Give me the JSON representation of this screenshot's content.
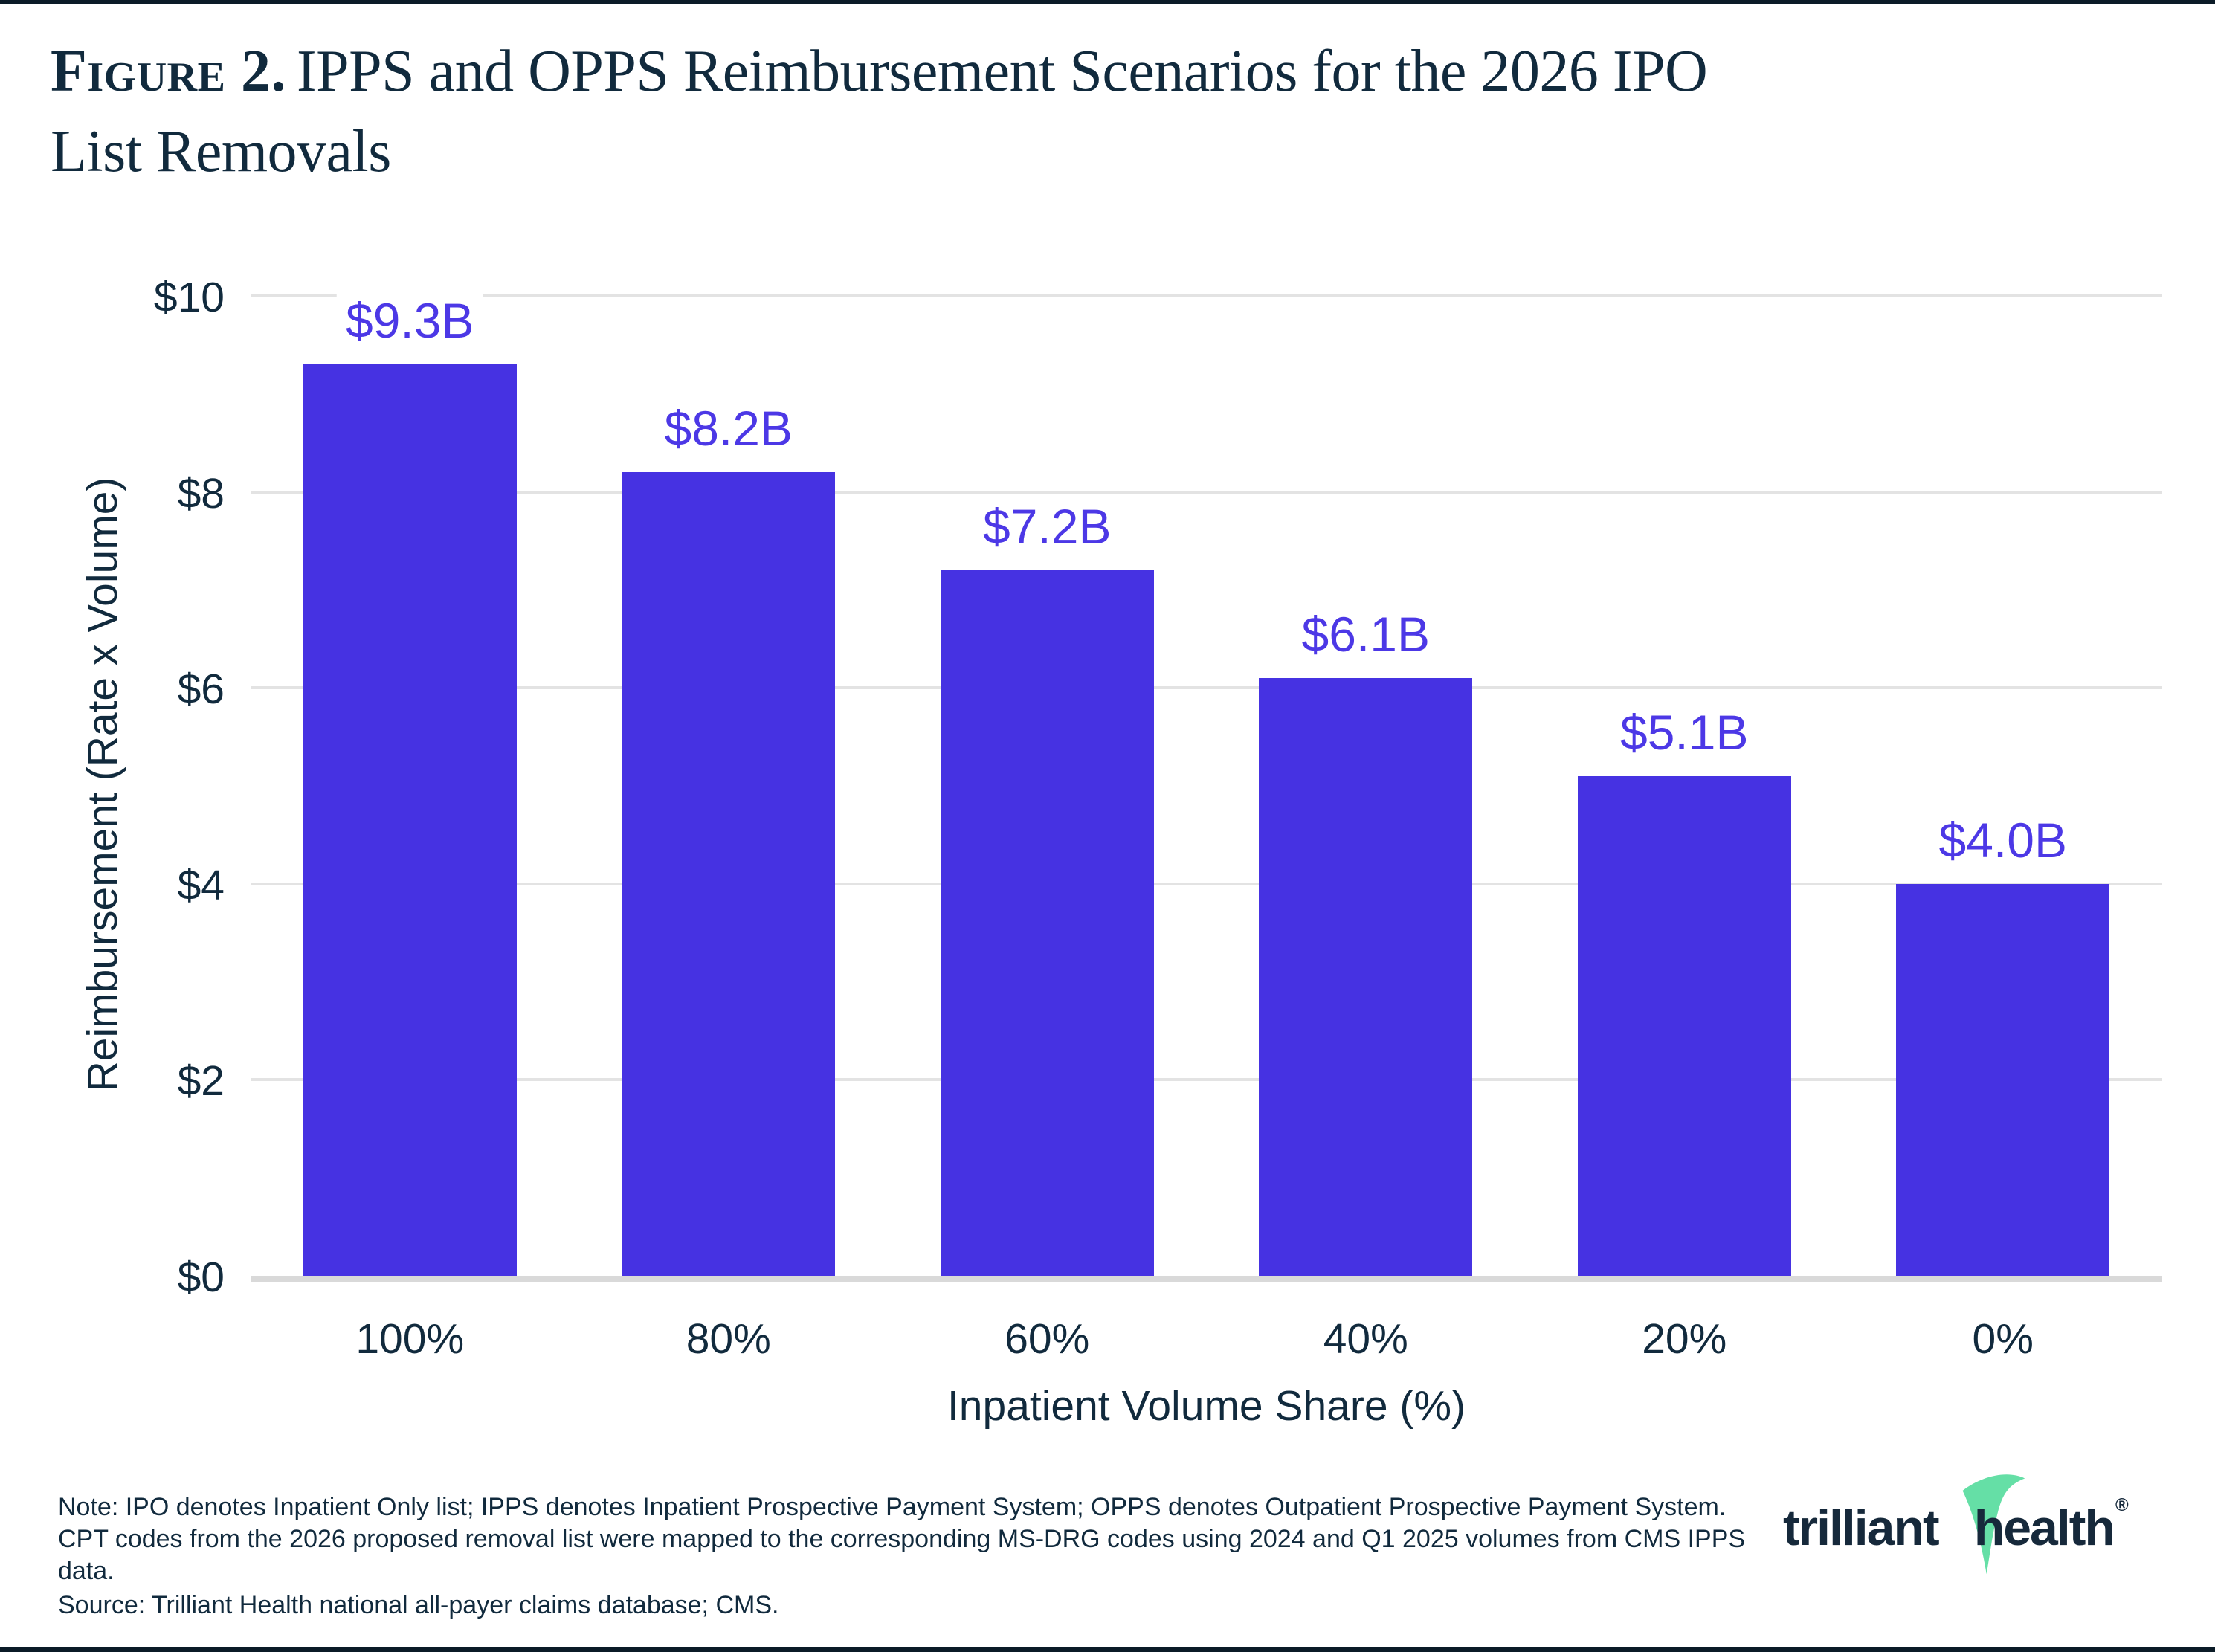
{
  "page": {
    "title_prefix": "Figure 2.",
    "title_line1": "IPPS and OPPS Reimbursement Scenarios for the 2026 IPO",
    "title_line2": "List Removals",
    "note": "Note: IPO denotes Inpatient Only list; IPPS denotes Inpatient Prospective Payment System; OPPS denotes Outpatient Prospective Payment System. CPT codes from the 2026 proposed removal list were mapped to the corresponding MS-DRG codes using 2024 and Q1 2025 volumes from CMS IPPS data.",
    "source": "Source: Trilliant Health national all-payer claims database; CMS.",
    "logo": {
      "word1": "trilliant",
      "word2": "health",
      "reg": "®"
    }
  },
  "colors": {
    "navy": "#112A3D",
    "bar": "#4632E2",
    "value_label": "#4C38E6",
    "gridline": "#E3E3E3",
    "baseline": "#D9D9D9",
    "logo_green": "#65DFA6",
    "page_rule": "#0B1B27"
  },
  "chart_data": {
    "type": "bar",
    "title": "IPPS and OPPS Reimbursement Scenarios for the 2026 IPO List Removals",
    "categories": [
      "100%",
      "80%",
      "60%",
      "40%",
      "20%",
      "0%"
    ],
    "values": [
      9.3,
      8.2,
      7.2,
      6.1,
      5.1,
      4.0
    ],
    "value_labels": [
      "$9.3B",
      "$8.2B",
      "$7.2B",
      "$6.1B",
      "$5.1B",
      "$4.0B"
    ],
    "xlabel": "Inpatient Volume Share (%)",
    "ylabel": "Reimbursement (Rate x Volume)",
    "ylim": [
      0,
      10
    ],
    "yticks": [
      0,
      2,
      4,
      6,
      8,
      10
    ],
    "ytick_labels": [
      "$0",
      "$2",
      "$4",
      "$6",
      "$8",
      "$10"
    ],
    "grid": "horizontal",
    "legend": "none",
    "bar_color": "#4632E2"
  }
}
